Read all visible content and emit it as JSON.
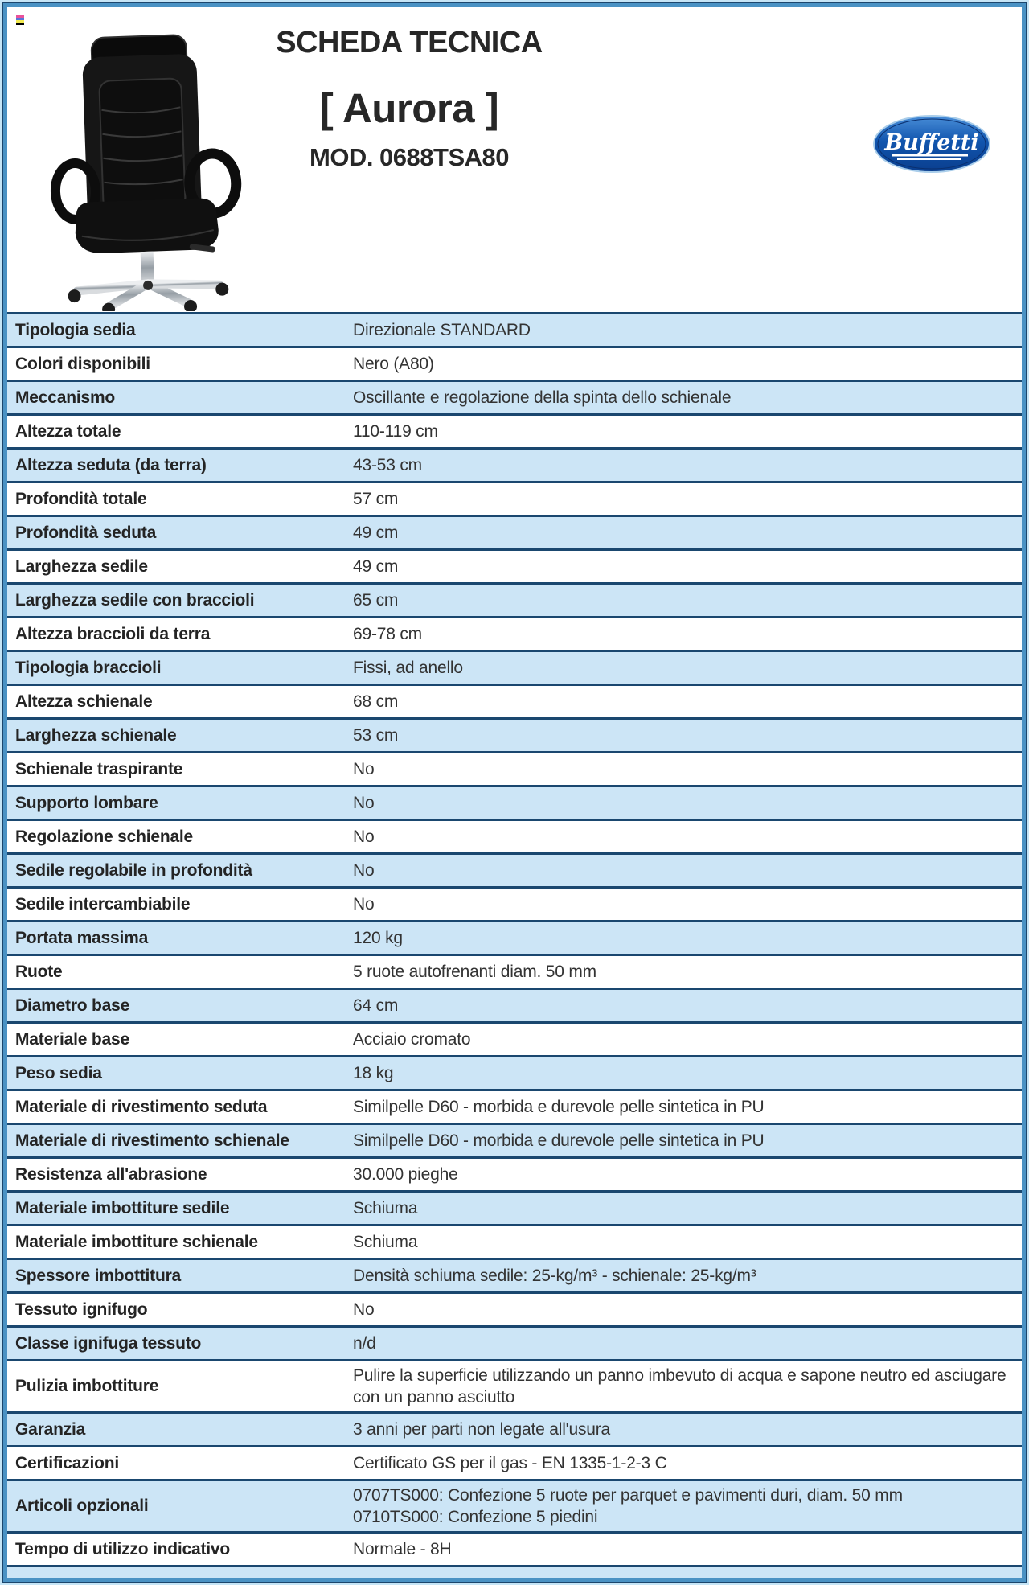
{
  "page": {
    "title": "SCHEDA TECNICA",
    "product_name": "[ Aurora ]",
    "model": "MOD. 0688TSA80",
    "brand": "Buffetti"
  },
  "icons": {
    "print_marks_colors": [
      "#e8529b",
      "#5577d9",
      "#f2ea50",
      "#000000"
    ],
    "chair_image": "black-executive-office-chair"
  },
  "colors": {
    "row_blue": "#cce5f6",
    "row_white": "#ffffff",
    "table_border": "#1a476f",
    "frame_outer_light": "#c6e5f6",
    "frame_dark_navy": "#1c466c",
    "frame_steel_blue": "#4a92c4",
    "logo_blue": "#1155ae",
    "text": "#262626"
  },
  "table": {
    "rows": [
      {
        "label": "Tipologia sedia",
        "value": "Direzionale STANDARD"
      },
      {
        "label": "Colori disponibili",
        "value": "Nero (A80)"
      },
      {
        "label": "Meccanismo",
        "value": "Oscillante e regolazione della spinta dello schienale"
      },
      {
        "label": "Altezza totale",
        "value": "110-119 cm"
      },
      {
        "label": "Altezza seduta (da terra)",
        "value": "43-53 cm"
      },
      {
        "label": "Profondità totale",
        "value": "57 cm"
      },
      {
        "label": "Profondità seduta",
        "value": "49 cm"
      },
      {
        "label": "Larghezza sedile",
        "value": "49 cm"
      },
      {
        "label": "Larghezza sedile con braccioli",
        "value": "65 cm"
      },
      {
        "label": "Altezza braccioli da terra",
        "value": "69-78 cm"
      },
      {
        "label": "Tipologia braccioli",
        "value": "Fissi, ad anello"
      },
      {
        "label": "Altezza schienale",
        "value": "68 cm"
      },
      {
        "label": "Larghezza schienale",
        "value": "53 cm"
      },
      {
        "label": "Schienale traspirante",
        "value": "No"
      },
      {
        "label": "Supporto lombare",
        "value": "No"
      },
      {
        "label": "Regolazione schienale",
        "value": "No"
      },
      {
        "label": "Sedile regolabile in profondità",
        "value": "No"
      },
      {
        "label": "Sedile intercambiabile",
        "value": "No"
      },
      {
        "label": "Portata massima",
        "value": "120 kg"
      },
      {
        "label": "Ruote",
        "value": "5 ruote autofrenanti diam. 50 mm"
      },
      {
        "label": "Diametro base",
        "value": "64 cm"
      },
      {
        "label": "Materiale base",
        "value": "Acciaio cromato"
      },
      {
        "label": "Peso sedia",
        "value": "18 kg"
      },
      {
        "label": "Materiale di rivestimento seduta",
        "value": "Similpelle D60 - morbida e durevole pelle sintetica in PU"
      },
      {
        "label": "Materiale di rivestimento schienale",
        "value": "Similpelle D60 - morbida e durevole pelle sintetica in PU"
      },
      {
        "label": "Resistenza all'abrasione",
        "value": "30.000 pieghe"
      },
      {
        "label": "Materiale imbottiture sedile",
        "value": "Schiuma"
      },
      {
        "label": "Materiale imbottiture schienale",
        "value": "Schiuma"
      },
      {
        "label": "Spessore imbottitura",
        "value": "Densità schiuma sedile: 25-kg/m³ - schienale: 25-kg/m³"
      },
      {
        "label": "Tessuto ignifugo",
        "value": "No"
      },
      {
        "label": "Classe ignifuga tessuto",
        "value": "n/d"
      },
      {
        "label": "Pulizia imbottiture",
        "value": "Pulire la superficie utilizzando un panno imbevuto di acqua e sapone neutro ed asciugare con un panno asciutto"
      },
      {
        "label": "Garanzia",
        "value": "3 anni per parti non legate all'usura"
      },
      {
        "label": "Certificazioni",
        "value": "Certificato GS per il gas - EN 1335-1-2-3 C"
      },
      {
        "label": "Articoli opzionali",
        "value": [
          "0707TS000: Confezione 5 ruote per parquet e pavimenti duri, diam. 50 mm",
          "0710TS000: Confezione 5 piedini"
        ]
      },
      {
        "label": "Tempo di utilizzo indicativo",
        "value": "Normale - 8H"
      }
    ]
  }
}
